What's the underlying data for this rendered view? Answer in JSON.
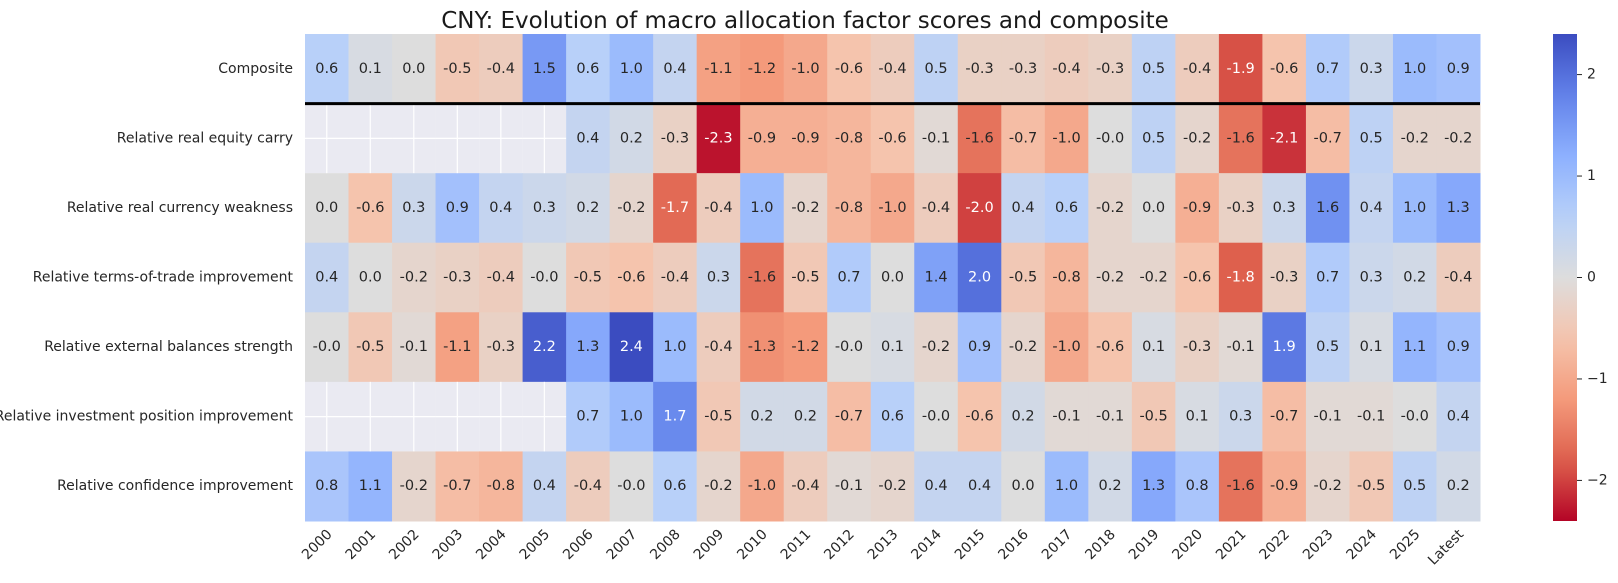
{
  "chart_data": {
    "type": "heatmap",
    "title": "CNY: Evolution of macro allocation factor scores and composite",
    "columns": [
      "2000",
      "2001",
      "2002",
      "2003",
      "2004",
      "2005",
      "2006",
      "2007",
      "2008",
      "2009",
      "2010",
      "2011",
      "2012",
      "2013",
      "2014",
      "2015",
      "2016",
      "2017",
      "2018",
      "2019",
      "2020",
      "2021",
      "2022",
      "2023",
      "2024",
      "2025",
      "Latest"
    ],
    "rows": [
      "Composite",
      "Relative real equity carry",
      "Relative real currency weakness",
      "Relative terms-of-trade improvement",
      "Relative external balances strength",
      "Relative investment position improvement",
      "Relative confidence improvement"
    ],
    "values": [
      [
        0.6,
        0.1,
        0.0,
        -0.5,
        -0.4,
        1.5,
        0.6,
        1.0,
        0.4,
        -1.1,
        -1.2,
        -1.0,
        -0.6,
        -0.4,
        0.5,
        -0.3,
        -0.3,
        -0.4,
        -0.3,
        0.5,
        -0.4,
        -1.9,
        -0.6,
        0.7,
        0.3,
        1.0,
        0.9
      ],
      [
        null,
        null,
        null,
        null,
        null,
        null,
        0.4,
        0.2,
        -0.3,
        -2.3,
        -0.9,
        -0.9,
        -0.8,
        -0.6,
        -0.1,
        -1.6,
        -0.7,
        -1.0,
        -0.0,
        0.5,
        -0.2,
        -1.6,
        -2.1,
        -0.7,
        0.5,
        -0.2,
        -0.2
      ],
      [
        0.0,
        -0.6,
        0.3,
        0.9,
        0.4,
        0.3,
        0.2,
        -0.2,
        -1.7,
        -0.4,
        1.0,
        -0.2,
        -0.8,
        -1.0,
        -0.4,
        -2.0,
        0.4,
        0.6,
        -0.2,
        0.0,
        -0.9,
        -0.3,
        0.3,
        1.6,
        0.4,
        1.0,
        1.3
      ],
      [
        0.4,
        0.0,
        -0.2,
        -0.3,
        -0.4,
        -0.0,
        -0.5,
        -0.6,
        -0.4,
        0.3,
        -1.6,
        -0.5,
        0.7,
        0.0,
        1.4,
        2.0,
        -0.5,
        -0.8,
        -0.2,
        -0.2,
        -0.6,
        -1.8,
        -0.3,
        0.7,
        0.3,
        0.2,
        -0.4
      ],
      [
        -0.0,
        -0.5,
        -0.1,
        -1.1,
        -0.3,
        2.2,
        1.3,
        2.4,
        1.0,
        -0.4,
        -1.3,
        -1.2,
        -0.0,
        0.1,
        -0.2,
        0.9,
        -0.2,
        -1.0,
        -0.6,
        0.1,
        -0.3,
        -0.1,
        1.9,
        0.5,
        0.1,
        1.1,
        0.9
      ],
      [
        null,
        null,
        null,
        null,
        null,
        null,
        0.7,
        1.0,
        1.7,
        -0.5,
        0.2,
        0.2,
        -0.7,
        0.6,
        -0.0,
        -0.6,
        0.2,
        -0.1,
        -0.1,
        -0.5,
        0.1,
        0.3,
        -0.7,
        -0.1,
        -0.1,
        -0.0,
        0.4
      ],
      [
        0.8,
        1.1,
        -0.2,
        -0.7,
        -0.8,
        0.4,
        -0.4,
        -0.0,
        0.6,
        -0.2,
        -1.0,
        -0.4,
        -0.1,
        -0.2,
        0.4,
        0.4,
        0.0,
        1.0,
        0.2,
        1.3,
        0.8,
        -1.6,
        -0.9,
        -0.2,
        -0.5,
        0.5,
        0.2
      ]
    ],
    "value_format": "one decimal",
    "colormap": "coolwarm",
    "vmin": -2.4,
    "vmax": 2.4,
    "colorbar_ticks": [
      2,
      1,
      0,
      -1,
      -2
    ],
    "colorbar_tick_labels": [
      "2",
      "1",
      "0",
      "−1",
      "−2"
    ],
    "separator_after_row": "Composite",
    "missing_cell_color": "#eaeaf2",
    "grid_on_missing": true
  }
}
